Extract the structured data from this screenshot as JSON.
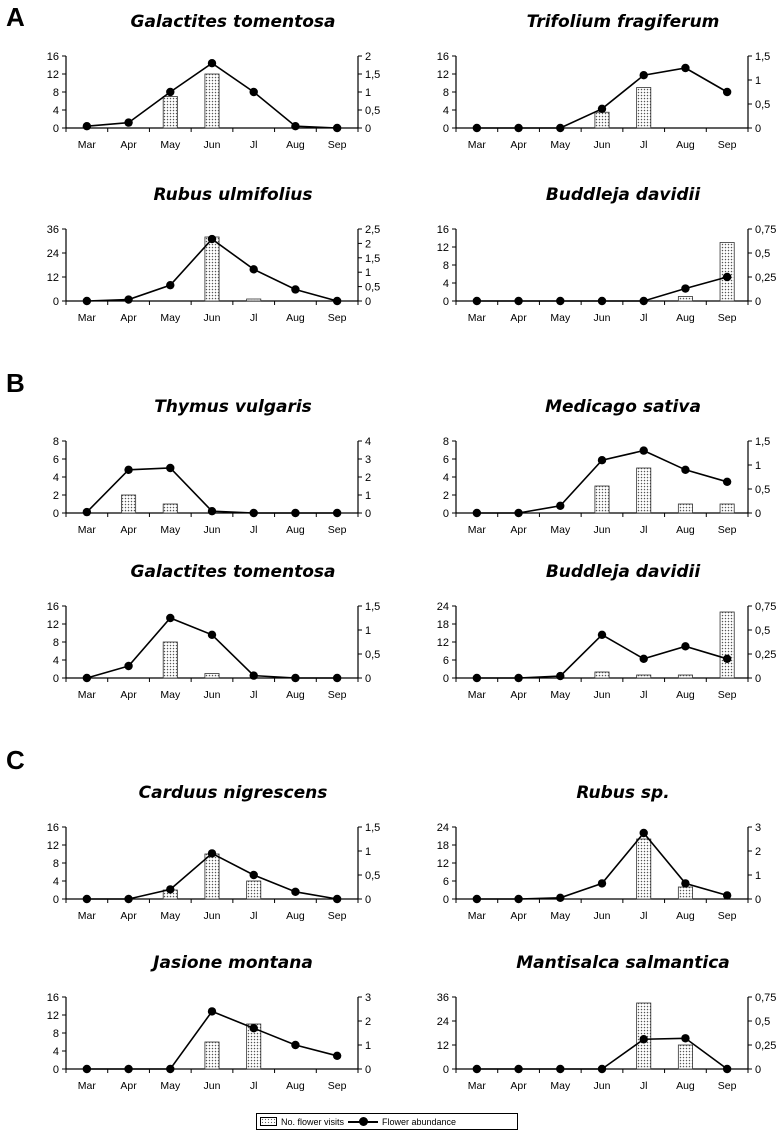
{
  "sections": [
    "A",
    "B",
    "C"
  ],
  "legend": {
    "bar_label": "No. flower visits",
    "line_label": "Flower abundance"
  },
  "chart_data": [
    {
      "type": "bar",
      "title": "Galactites tomentosa",
      "categories": [
        "Mar",
        "Apr",
        "May",
        "Jun",
        "Jl",
        "Aug",
        "Sep"
      ],
      "series": [
        {
          "name": "No. flower visits",
          "type": "bar",
          "axis": "left",
          "values": [
            0,
            0,
            7,
            12,
            0,
            0,
            0
          ]
        },
        {
          "name": "Flower abundance",
          "type": "line",
          "axis": "right",
          "values": [
            0.05,
            0.15,
            1.0,
            1.8,
            1.0,
            0.05,
            0
          ]
        }
      ],
      "ylim_left": [
        0,
        16
      ],
      "yticks_left": [
        0,
        4,
        8,
        12,
        16
      ],
      "ylim_right": [
        0,
        2
      ],
      "yticks_right": [
        "0",
        "0,5",
        "1",
        "1,5",
        "2"
      ]
    },
    {
      "type": "bar",
      "title": "Trifolium fragiferum",
      "categories": [
        "Mar",
        "Apr",
        "May",
        "Jun",
        "Jl",
        "Aug",
        "Sep"
      ],
      "series": [
        {
          "name": "No. flower visits",
          "type": "bar",
          "axis": "left",
          "values": [
            0,
            0,
            0,
            3.5,
            9,
            0,
            0
          ]
        },
        {
          "name": "Flower abundance",
          "type": "line",
          "axis": "right",
          "values": [
            0,
            0,
            0,
            0.4,
            1.1,
            1.25,
            0.75
          ]
        }
      ],
      "ylim_left": [
        0,
        16
      ],
      "yticks_left": [
        0,
        4,
        8,
        12,
        16
      ],
      "ylim_right": [
        0,
        1.5
      ],
      "yticks_right": [
        "0",
        "0,5",
        "1",
        "1,5"
      ]
    },
    {
      "type": "bar",
      "title": "Rubus ulmifolius",
      "categories": [
        "Mar",
        "Apr",
        "May",
        "Jun",
        "Jl",
        "Aug",
        "Sep"
      ],
      "series": [
        {
          "name": "No. flower visits",
          "type": "bar",
          "axis": "left",
          "values": [
            0,
            0,
            0,
            32,
            1,
            0,
            0
          ]
        },
        {
          "name": "Flower abundance",
          "type": "line",
          "axis": "right",
          "values": [
            0,
            0.05,
            0.55,
            2.15,
            1.1,
            0.4,
            0
          ]
        }
      ],
      "ylim_left": [
        0,
        36
      ],
      "yticks_left": [
        0,
        12,
        24,
        36
      ],
      "ylim_right": [
        0,
        2.5
      ],
      "yticks_right": [
        "0",
        "0,5",
        "1",
        "1,5",
        "2",
        "2,5"
      ]
    },
    {
      "type": "bar",
      "title": "Buddleja davidii",
      "categories": [
        "Mar",
        "Apr",
        "May",
        "Jun",
        "Jl",
        "Aug",
        "Sep"
      ],
      "series": [
        {
          "name": "No. flower visits",
          "type": "bar",
          "axis": "left",
          "values": [
            0,
            0,
            0,
            0,
            0,
            1,
            13
          ]
        },
        {
          "name": "Flower abundance",
          "type": "line",
          "axis": "right",
          "values": [
            0,
            0,
            0,
            0,
            0,
            0.13,
            0.25
          ]
        }
      ],
      "ylim_left": [
        0,
        16
      ],
      "yticks_left": [
        0,
        4,
        8,
        12,
        16
      ],
      "ylim_right": [
        0,
        0.75
      ],
      "yticks_right": [
        "0",
        "0,25",
        "0,5",
        "0,75"
      ]
    },
    {
      "type": "bar",
      "title": "Thymus vulgaris",
      "categories": [
        "Mar",
        "Apr",
        "May",
        "Jun",
        "Jl",
        "Aug",
        "Sep"
      ],
      "series": [
        {
          "name": "No. flower visits",
          "type": "bar",
          "axis": "left",
          "values": [
            0,
            2,
            1,
            0,
            0,
            0,
            0
          ]
        },
        {
          "name": "Flower abundance",
          "type": "line",
          "axis": "right",
          "values": [
            0.05,
            2.4,
            2.5,
            0.1,
            0,
            0,
            0
          ]
        }
      ],
      "ylim_left": [
        0,
        8
      ],
      "yticks_left": [
        0,
        2,
        4,
        6,
        8
      ],
      "ylim_right": [
        0,
        4
      ],
      "yticks_right": [
        "0",
        "1",
        "2",
        "3",
        "4"
      ]
    },
    {
      "type": "bar",
      "title": "Medicago sativa",
      "categories": [
        "Mar",
        "Apr",
        "May",
        "Jun",
        "Jl",
        "Aug",
        "Sep"
      ],
      "series": [
        {
          "name": "No. flower visits",
          "type": "bar",
          "axis": "left",
          "values": [
            0,
            0,
            0,
            3,
            5,
            1,
            1
          ]
        },
        {
          "name": "Flower abundance",
          "type": "line",
          "axis": "right",
          "values": [
            0,
            0,
            0.15,
            1.1,
            1.3,
            0.9,
            0.65
          ]
        }
      ],
      "ylim_left": [
        0,
        8
      ],
      "yticks_left": [
        0,
        2,
        4,
        6,
        8
      ],
      "ylim_right": [
        0,
        1.5
      ],
      "yticks_right": [
        "0",
        "0,5",
        "1",
        "1,5"
      ]
    },
    {
      "type": "bar",
      "title": "Galactites tomentosa",
      "categories": [
        "Mar",
        "Apr",
        "May",
        "Jun",
        "Jl",
        "Aug",
        "Sep"
      ],
      "series": [
        {
          "name": "No. flower visits",
          "type": "bar",
          "axis": "left",
          "values": [
            0,
            0,
            8,
            1,
            0,
            0,
            0
          ]
        },
        {
          "name": "Flower abundance",
          "type": "line",
          "axis": "right",
          "values": [
            0,
            0.25,
            1.25,
            0.9,
            0.05,
            0,
            0
          ]
        }
      ],
      "ylim_left": [
        0,
        16
      ],
      "yticks_left": [
        0,
        4,
        8,
        12,
        16
      ],
      "ylim_right": [
        0,
        1.5
      ],
      "yticks_right": [
        "0",
        "0,5",
        "1",
        "1,5"
      ]
    },
    {
      "type": "bar",
      "title": "Buddleja davidii",
      "categories": [
        "Mar",
        "Apr",
        "May",
        "Jun",
        "Jl",
        "Aug",
        "Sep"
      ],
      "series": [
        {
          "name": "No. flower visits",
          "type": "bar",
          "axis": "left",
          "values": [
            0,
            0,
            0,
            2,
            1,
            1,
            22
          ]
        },
        {
          "name": "Flower abundance",
          "type": "line",
          "axis": "right",
          "values": [
            0,
            0,
            0.02,
            0.45,
            0.2,
            0.33,
            0.2
          ]
        }
      ],
      "ylim_left": [
        0,
        24
      ],
      "yticks_left": [
        0,
        6,
        12,
        18,
        24
      ],
      "ylim_right": [
        0,
        0.75
      ],
      "yticks_right": [
        "0",
        "0,25",
        "0,5",
        "0,75"
      ]
    },
    {
      "type": "bar",
      "title": "Carduus nigrescens",
      "categories": [
        "Mar",
        "Apr",
        "May",
        "Jun",
        "Jl",
        "Aug",
        "Sep"
      ],
      "series": [
        {
          "name": "No. flower visits",
          "type": "bar",
          "axis": "left",
          "values": [
            0,
            0,
            2,
            10,
            4,
            0,
            0
          ]
        },
        {
          "name": "Flower abundance",
          "type": "line",
          "axis": "right",
          "values": [
            0,
            0,
            0.2,
            0.95,
            0.5,
            0.15,
            0
          ]
        }
      ],
      "ylim_left": [
        0,
        16
      ],
      "yticks_left": [
        0,
        4,
        8,
        12,
        16
      ],
      "ylim_right": [
        0,
        1.5
      ],
      "yticks_right": [
        "0",
        "0,5",
        "1",
        "1,5"
      ]
    },
    {
      "type": "bar",
      "title": "Rubus sp.",
      "categories": [
        "Mar",
        "Apr",
        "May",
        "Jun",
        "Jl",
        "Aug",
        "Sep"
      ],
      "series": [
        {
          "name": "No. flower visits",
          "type": "bar",
          "axis": "left",
          "values": [
            0,
            0,
            0,
            0,
            20,
            4,
            0
          ]
        },
        {
          "name": "Flower abundance",
          "type": "line",
          "axis": "right",
          "values": [
            0,
            0,
            0.05,
            0.65,
            2.75,
            0.65,
            0.15
          ]
        }
      ],
      "ylim_left": [
        0,
        24
      ],
      "yticks_left": [
        0,
        6,
        12,
        18,
        24
      ],
      "ylim_right": [
        0,
        3
      ],
      "yticks_right": [
        "0",
        "1",
        "2",
        "3"
      ]
    },
    {
      "type": "bar",
      "title": "Jasione montana",
      "categories": [
        "Mar",
        "Apr",
        "May",
        "Jun",
        "Jl",
        "Aug",
        "Sep"
      ],
      "series": [
        {
          "name": "No. flower visits",
          "type": "bar",
          "axis": "left",
          "values": [
            0,
            0,
            0,
            6,
            10,
            0,
            0
          ]
        },
        {
          "name": "Flower abundance",
          "type": "line",
          "axis": "right",
          "values": [
            0,
            0,
            0,
            2.4,
            1.7,
            1.0,
            0.55
          ]
        }
      ],
      "ylim_left": [
        0,
        16
      ],
      "yticks_left": [
        0,
        4,
        8,
        12,
        16
      ],
      "ylim_right": [
        0,
        3
      ],
      "yticks_right": [
        "0",
        "1",
        "2",
        "3"
      ]
    },
    {
      "type": "bar",
      "title": "Mantisalca salmantica",
      "categories": [
        "Mar",
        "Apr",
        "May",
        "Jun",
        "Jl",
        "Aug",
        "Sep"
      ],
      "series": [
        {
          "name": "No. flower visits",
          "type": "bar",
          "axis": "left",
          "values": [
            0,
            0,
            0,
            0,
            33,
            12,
            0
          ]
        },
        {
          "name": "Flower abundance",
          "type": "line",
          "axis": "right",
          "values": [
            0,
            0,
            0,
            0,
            0.31,
            0.32,
            0
          ]
        }
      ],
      "ylim_left": [
        0,
        36
      ],
      "yticks_left": [
        0,
        12,
        24,
        36
      ],
      "ylim_right": [
        0,
        0.75
      ],
      "yticks_right": [
        "0",
        "0,25",
        "0,5",
        "0,75"
      ]
    }
  ]
}
